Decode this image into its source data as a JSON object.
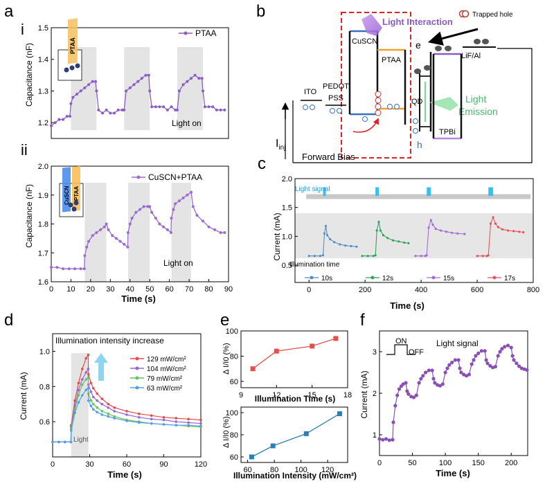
{
  "panel_letters": {
    "a": "a",
    "a_i": "i",
    "a_ii": "ii",
    "b": "b",
    "c": "c",
    "d": "d",
    "e": "e",
    "f": "f"
  },
  "colors": {
    "ptaa": "#8a5cc4",
    "cusc": "#9b6bd1",
    "light_box": "#e4e4e4",
    "c_10s": "#4a8fd0",
    "c_12s": "#2fa35e",
    "c_15s": "#a56ad8",
    "c_17s": "#e2555a",
    "d_129": "#e84a4a",
    "d_104": "#9466d6",
    "d_79": "#63c45a",
    "d_63": "#4fa0e8",
    "e_top": "#e4504a",
    "e_bottom": "#2b7fb8",
    "f": "#8a4fb5",
    "red_dash": "#d22",
    "green": "#4bb56f"
  },
  "chart_data": [
    {
      "id": "a_i",
      "type": "line",
      "xlabel": "",
      "ylabel": "Capacitance (nF)",
      "ylim": [
        1.15,
        1.5
      ],
      "yticks": [
        "1.2",
        "1.3",
        "1.4",
        "1.5"
      ],
      "xlim": [
        0,
        90
      ],
      "legend": "PTAA",
      "annotation": "Light on",
      "light_windows": [
        [
          10,
          23
        ],
        [
          37,
          50
        ],
        [
          64,
          77
        ]
      ],
      "inset_label": "PTAA",
      "series": [
        {
          "name": "PTAA",
          "x": [
            0,
            2,
            4,
            6,
            8,
            9.5,
            10,
            11,
            13,
            15,
            17,
            19,
            21,
            22.5,
            23,
            24,
            26,
            28,
            30,
            32,
            34,
            36,
            37,
            38,
            40,
            42,
            44,
            46,
            48,
            49.5,
            50,
            51,
            53,
            55,
            57,
            59,
            61,
            63,
            64,
            65,
            67,
            69,
            71,
            73,
            75,
            76.5,
            77,
            78,
            80,
            82,
            84,
            86,
            88
          ],
          "values": [
            1.19,
            1.2,
            1.21,
            1.21,
            1.22,
            1.22,
            1.26,
            1.28,
            1.29,
            1.3,
            1.31,
            1.32,
            1.33,
            1.33,
            1.3,
            1.24,
            1.23,
            1.24,
            1.23,
            1.23,
            1.24,
            1.24,
            1.24,
            1.3,
            1.31,
            1.32,
            1.33,
            1.34,
            1.35,
            1.35,
            1.3,
            1.25,
            1.25,
            1.25,
            1.25,
            1.24,
            1.25,
            1.24,
            1.24,
            1.3,
            1.32,
            1.33,
            1.34,
            1.35,
            1.34,
            1.34,
            1.3,
            1.25,
            1.25,
            1.25,
            1.24,
            1.24,
            1.24
          ]
        }
      ]
    },
    {
      "id": "a_ii",
      "type": "line",
      "xlabel": "Time (s)",
      "ylabel": "Capacitance (nF)",
      "ylim": [
        1.6,
        2.0
      ],
      "yticks": [
        "1.6",
        "1.7",
        "1.8",
        "1.9",
        "2.0"
      ],
      "xlim": [
        0,
        90
      ],
      "xticks": [
        "0",
        "10",
        "20",
        "30",
        "40",
        "50",
        "60",
        "70",
        "80",
        "90"
      ],
      "legend": "CuSCN+PTAA",
      "annotation": "Light on",
      "light_windows": [
        [
          17,
          28
        ],
        [
          39,
          50
        ],
        [
          61,
          71
        ]
      ],
      "inset_labels": [
        "CuSCN",
        "PTAA"
      ],
      "series": [
        {
          "name": "CuSCN+PTAA",
          "x": [
            0,
            3,
            6,
            9,
            12,
            15,
            16.8,
            17,
            18,
            19,
            21,
            23,
            25,
            27,
            28,
            29,
            31,
            33,
            35,
            37,
            38.8,
            39,
            40,
            41,
            43,
            45,
            47,
            49,
            50,
            51,
            53,
            55,
            57,
            59,
            60.8,
            61,
            62,
            63,
            65,
            67,
            69,
            71,
            72,
            74,
            77,
            80,
            83,
            86,
            88
          ],
          "values": [
            1.65,
            1.65,
            1.645,
            1.645,
            1.645,
            1.645,
            1.645,
            1.69,
            1.72,
            1.74,
            1.76,
            1.77,
            1.78,
            1.79,
            1.8,
            1.78,
            1.76,
            1.75,
            1.74,
            1.73,
            1.72,
            1.77,
            1.8,
            1.82,
            1.84,
            1.85,
            1.86,
            1.86,
            1.86,
            1.84,
            1.82,
            1.8,
            1.79,
            1.78,
            1.77,
            1.82,
            1.85,
            1.87,
            1.88,
            1.89,
            1.9,
            1.91,
            1.86,
            1.83,
            1.81,
            1.79,
            1.78,
            1.77,
            1.77
          ]
        }
      ]
    },
    {
      "id": "c",
      "type": "line",
      "xlabel": "Time (s)",
      "ylabel": "Current (mA)",
      "ylim": [
        0.2,
        2.0
      ],
      "yticks": [
        "0.5",
        "1.0",
        "1.5",
        "2.0"
      ],
      "xlim": [
        -50,
        800
      ],
      "xticks": [
        "0",
        "200",
        "400",
        "600",
        "800"
      ],
      "signal_label": "Light signal",
      "illumination_label": "Illumination time",
      "signal_pulses": [
        [
          50,
          60
        ],
        [
          237,
          249
        ],
        [
          420,
          435
        ],
        [
          640,
          657
        ]
      ],
      "series": [
        {
          "name": "10s",
          "x": [
            0,
            20,
            40,
            50,
            55,
            60,
            65,
            75,
            90,
            110,
            130,
            150,
            170
          ],
          "values": [
            0.66,
            0.66,
            0.66,
            0.67,
            1.05,
            1.18,
            1.02,
            0.95,
            0.9,
            0.86,
            0.84,
            0.83,
            0.82
          ]
        },
        {
          "name": "12s",
          "x": [
            190,
            210,
            230,
            237,
            242,
            249,
            255,
            265,
            280,
            300,
            320,
            340,
            355
          ],
          "values": [
            0.66,
            0.66,
            0.66,
            0.67,
            1.1,
            1.25,
            1.1,
            1.02,
            0.97,
            0.93,
            0.91,
            0.89,
            0.88
          ]
        },
        {
          "name": "15s",
          "x": [
            380,
            400,
            415,
            420,
            427,
            435,
            442,
            452,
            470,
            490,
            510,
            530,
            555
          ],
          "values": [
            0.66,
            0.66,
            0.66,
            0.67,
            1.15,
            1.28,
            1.2,
            1.13,
            1.1,
            1.08,
            1.06,
            1.05,
            1.04
          ]
        },
        {
          "name": "17s",
          "x": [
            600,
            620,
            635,
            640,
            648,
            657,
            665,
            675,
            690,
            710,
            730,
            750,
            765
          ],
          "values": [
            0.66,
            0.66,
            0.66,
            0.67,
            1.22,
            1.33,
            1.22,
            1.16,
            1.12,
            1.1,
            1.09,
            1.08,
            1.07
          ]
        }
      ]
    },
    {
      "id": "d",
      "type": "line",
      "title": "Illumination intensity increase",
      "xlabel": "Time (s)",
      "ylabel": "Current (mA)",
      "ylim": [
        0.4,
        1.1
      ],
      "yticks": [
        "0.6",
        "0.8",
        "1.0"
      ],
      "xlim": [
        0,
        120
      ],
      "xticks": [
        "0",
        "30",
        "60",
        "90",
        "120"
      ],
      "light_window": [
        15,
        29
      ],
      "light_label": "Light",
      "series": [
        {
          "name": "129 mW/cm²",
          "x": [
            0,
            5,
            10,
            14.8,
            15,
            18,
            21,
            24,
            27,
            28.8,
            29,
            31,
            33,
            36,
            40,
            45,
            50,
            60,
            70,
            80,
            90,
            100,
            110,
            120
          ],
          "values": [
            0.485,
            0.485,
            0.485,
            0.485,
            0.58,
            0.72,
            0.82,
            0.9,
            0.96,
            0.98,
            0.87,
            0.82,
            0.79,
            0.76,
            0.73,
            0.7,
            0.68,
            0.66,
            0.645,
            0.635,
            0.625,
            0.62,
            0.615,
            0.61
          ]
        },
        {
          "name": "104 mW/cm²",
          "x": [
            0,
            5,
            10,
            14.8,
            15,
            18,
            21,
            24,
            27,
            28.8,
            29,
            31,
            33,
            36,
            40,
            45,
            50,
            60,
            70,
            80,
            90,
            100,
            110,
            120
          ],
          "values": [
            0.485,
            0.485,
            0.485,
            0.485,
            0.57,
            0.69,
            0.78,
            0.84,
            0.88,
            0.9,
            0.81,
            0.77,
            0.74,
            0.72,
            0.7,
            0.68,
            0.66,
            0.64,
            0.625,
            0.615,
            0.61,
            0.6,
            0.595,
            0.59
          ]
        },
        {
          "name": "79 mW/cm²",
          "x": [
            0,
            5,
            10,
            14.8,
            15,
            18,
            21,
            24,
            27,
            28.8,
            29,
            31,
            33,
            36,
            40,
            45,
            50,
            60,
            70,
            80,
            90,
            100,
            110,
            120
          ],
          "values": [
            0.485,
            0.485,
            0.485,
            0.485,
            0.56,
            0.67,
            0.75,
            0.81,
            0.84,
            0.85,
            0.76,
            0.72,
            0.7,
            0.68,
            0.66,
            0.645,
            0.63,
            0.61,
            0.6,
            0.59,
            0.585,
            0.58,
            0.575,
            0.57
          ]
        },
        {
          "name": "63 mW/cm²",
          "x": [
            0,
            5,
            10,
            14.8,
            15,
            18,
            21,
            24,
            27,
            28.8,
            29,
            31,
            33,
            36,
            40,
            45,
            50,
            60,
            70,
            80,
            90,
            100,
            110,
            120
          ],
          "values": [
            0.485,
            0.485,
            0.485,
            0.485,
            0.55,
            0.65,
            0.71,
            0.75,
            0.78,
            0.79,
            0.72,
            0.69,
            0.67,
            0.655,
            0.64,
            0.63,
            0.62,
            0.605,
            0.595,
            0.59,
            0.585,
            0.58,
            0.58,
            0.575
          ]
        }
      ]
    },
    {
      "id": "e_top",
      "type": "line",
      "xlabel": "Illumination Time (s)",
      "ylabel": "∆ I/I0 (%)",
      "ylim": [
        55,
        100
      ],
      "yticks": [
        "60",
        "80",
        "100"
      ],
      "xlim": [
        9,
        18
      ],
      "xticks": [
        "9",
        "12",
        "15",
        "18"
      ],
      "series": [
        {
          "name": "",
          "x": [
            10,
            12,
            15,
            17
          ],
          "values": [
            70,
            84,
            88,
            94
          ]
        }
      ]
    },
    {
      "id": "e_bottom",
      "type": "line",
      "xlabel": "Illumination Intensity (mW/cm²)",
      "ylabel": "∆ I/I0 (%)",
      "ylim": [
        55,
        105
      ],
      "yticks": [
        "60",
        "80",
        "100"
      ],
      "xlim": [
        55,
        135
      ],
      "xticks": [
        "60",
        "80",
        "100",
        "120"
      ],
      "series": [
        {
          "name": "",
          "x": [
            63,
            79,
            104,
            129
          ],
          "values": [
            60,
            70,
            81,
            99
          ]
        }
      ]
    },
    {
      "id": "f",
      "type": "line",
      "xlabel": "Time (s)",
      "ylabel": "Current (mA)",
      "ylim": [
        0.5,
        3.5
      ],
      "yticks": [
        "1",
        "2",
        "3"
      ],
      "xlim": [
        0,
        225
      ],
      "xticks": [
        "0",
        "50",
        "100",
        "150",
        "200"
      ],
      "legend": "Light signal",
      "signal_on": "ON",
      "signal_off": "OFF",
      "series": [
        {
          "name": "",
          "x": [
            0,
            5,
            10,
            15,
            20,
            21,
            24,
            27,
            30,
            33,
            36,
            40,
            42,
            44,
            48,
            52,
            56,
            60,
            63,
            66,
            70,
            75,
            80,
            82,
            84,
            88,
            92,
            96,
            100,
            103,
            106,
            110,
            115,
            120,
            122,
            124,
            128,
            132,
            136,
            140,
            143,
            146,
            150,
            155,
            160,
            162,
            164,
            168,
            172,
            176,
            180,
            183,
            186,
            190,
            195,
            200,
            202,
            204,
            208,
            212,
            216,
            220,
            224
          ],
          "values": [
            0.9,
            0.88,
            0.9,
            0.87,
            0.88,
            1.3,
            1.7,
            1.95,
            2.1,
            2.17,
            2.22,
            2.25,
            2.05,
            1.98,
            1.92,
            1.9,
            1.95,
            2.25,
            2.35,
            2.42,
            2.5,
            2.55,
            2.55,
            2.35,
            2.25,
            2.2,
            2.18,
            2.22,
            2.5,
            2.6,
            2.68,
            2.74,
            2.8,
            2.8,
            2.6,
            2.5,
            2.45,
            2.42,
            2.45,
            2.7,
            2.8,
            2.9,
            2.96,
            3.02,
            3.02,
            2.8,
            2.72,
            2.66,
            2.62,
            2.64,
            2.9,
            3.0,
            3.07,
            3.12,
            3.15,
            3.1,
            2.9,
            2.8,
            2.72,
            2.65,
            2.6,
            2.58,
            2.56
          ]
        }
      ]
    }
  ],
  "diagram": {
    "trapped_hole": "Trapped hole",
    "light_interaction": "Light Interaction",
    "light_emission_1": "Light",
    "light_emission_2": "Emission",
    "layers": {
      "ito": "ITO",
      "pedot1": "PEDOT:",
      "pedot2": "PSS",
      "cuscn": "CuSCN",
      "ptaa": "PTAA",
      "qd": "QD",
      "tpbi": "TPBi",
      "lif": "LiF/Al"
    },
    "electron": "e",
    "hole": "h",
    "current": "I",
    "current_sub": "inj",
    "bias": "Forward Bias"
  }
}
